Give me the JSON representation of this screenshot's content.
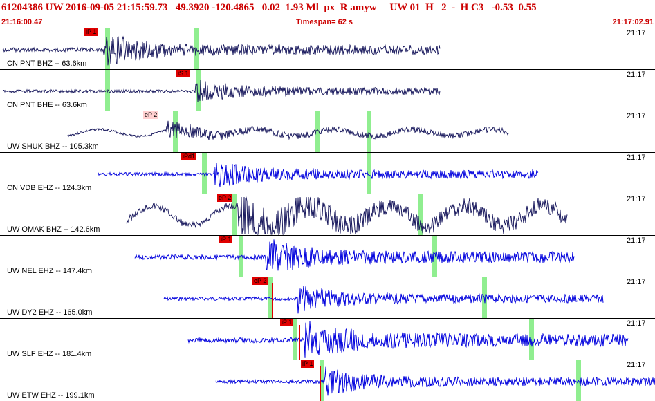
{
  "header": {
    "title": "61204386 UW 2016-09-05 21:15:59.73   49.3920 -120.4865   0.02  1.93 Ml  px  R amyw     UW 01  H   2  -  H C3   -0.53  0.55",
    "start_time": "21:16:00.47",
    "timespan": "Timespan=  62 s",
    "end_time": "21:17:02.91"
  },
  "colors": {
    "header_text": "#cc0000",
    "trace_dark": "#1a1a5e",
    "trace_blue": "#0000dd",
    "pick": "#e00000",
    "window": "#90ee90"
  },
  "panels": [
    {
      "label": "CN PNT BHZ -- 63.6km",
      "time": "21:17",
      "pick": "iP 1",
      "color": "dark",
      "style": "normal"
    },
    {
      "label": "CN PNT BHE -- 63.6km",
      "time": "21:17",
      "pick": "iS 1",
      "color": "dark",
      "style": "normal"
    },
    {
      "label": "UW SHUK BHZ -- 105.3km",
      "time": "21:17",
      "pick": "eP 2",
      "color": "dark",
      "style": "light"
    },
    {
      "label": "CN VDB EHZ -- 124.3km",
      "time": "21:17",
      "pick": "iPd1",
      "color": "blue",
      "style": "normal"
    },
    {
      "label": "UW OMAK BHZ -- 142.6km",
      "time": "21:17",
      "pick": "eP 2",
      "color": "dark",
      "style": "normal"
    },
    {
      "label": "UW NEL EHZ -- 147.4km",
      "time": "21:17",
      "pick": "iP 1",
      "color": "blue",
      "style": "normal"
    },
    {
      "label": "UW DY2 EHZ -- 165.0km",
      "time": "21:17",
      "pick": "eP 2",
      "color": "blue",
      "style": "normal"
    },
    {
      "label": "UW SLF EHZ -- 181.4km",
      "time": "21:17",
      "pick": "iP 1",
      "color": "blue",
      "style": "normal"
    },
    {
      "label": "UW ETW EHZ -- 199.1km",
      "time": "21:17",
      "pick": "iP 1",
      "color": "blue",
      "style": "normal"
    }
  ]
}
